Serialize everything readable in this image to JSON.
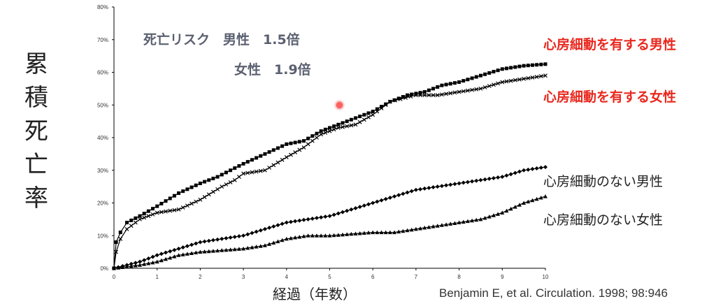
{
  "chart_data": {
    "type": "line",
    "ylabel": "累積死亡率",
    "xlabel": "経過（年数）",
    "x_ticks": [
      "0",
      "1",
      "2",
      "3",
      "4",
      "5",
      "6",
      "7",
      "8",
      "9",
      "10"
    ],
    "y_ticks": [
      "0%",
      "10%",
      "20%",
      "30%",
      "40%",
      "50%",
      "60%",
      "70%",
      "80%"
    ],
    "xlim": [
      0,
      10
    ],
    "ylim": [
      0,
      80
    ],
    "grid": false,
    "series": [
      {
        "name": "心房細動を有する男性",
        "marker": "square",
        "color": "#000000",
        "points": [
          [
            0,
            0
          ],
          [
            0.05,
            8
          ],
          [
            0.15,
            11
          ],
          [
            0.3,
            14
          ],
          [
            0.6,
            16
          ],
          [
            1,
            19
          ],
          [
            1.5,
            23
          ],
          [
            2,
            26
          ],
          [
            2.4,
            28
          ],
          [
            2.7,
            30
          ],
          [
            3,
            32
          ],
          [
            3.5,
            35
          ],
          [
            4,
            38
          ],
          [
            4.4,
            39
          ],
          [
            4.8,
            42
          ],
          [
            5.2,
            44
          ],
          [
            5.6,
            46
          ],
          [
            6,
            48
          ],
          [
            6.4,
            51
          ],
          [
            6.8,
            53
          ],
          [
            7.2,
            54
          ],
          [
            7.6,
            56
          ],
          [
            8,
            57
          ],
          [
            8.5,
            59
          ],
          [
            9,
            61
          ],
          [
            9.5,
            62
          ],
          [
            10,
            62.5
          ]
        ]
      },
      {
        "name": "心房細動を有する女性",
        "marker": "x",
        "color": "#000000",
        "points": [
          [
            0,
            0
          ],
          [
            0.05,
            5
          ],
          [
            0.15,
            9
          ],
          [
            0.3,
            12
          ],
          [
            0.6,
            15
          ],
          [
            1,
            17
          ],
          [
            1.5,
            18
          ],
          [
            2,
            21
          ],
          [
            2.5,
            25
          ],
          [
            2.8,
            27
          ],
          [
            3,
            29
          ],
          [
            3.5,
            30
          ],
          [
            4,
            34
          ],
          [
            4.4,
            37
          ],
          [
            4.8,
            41
          ],
          [
            5.2,
            43
          ],
          [
            5.6,
            44
          ],
          [
            6,
            47
          ],
          [
            6.4,
            51
          ],
          [
            7,
            53
          ],
          [
            7.5,
            53
          ],
          [
            8,
            54
          ],
          [
            8.5,
            55
          ],
          [
            9,
            57
          ],
          [
            9.5,
            58
          ],
          [
            10,
            59
          ]
        ]
      },
      {
        "name": "心房細動のない男性",
        "marker": "diamond",
        "color": "#000000",
        "points": [
          [
            0,
            0
          ],
          [
            0.3,
            1
          ],
          [
            0.6,
            2
          ],
          [
            1,
            4
          ],
          [
            1.5,
            6
          ],
          [
            2,
            8
          ],
          [
            2.5,
            9
          ],
          [
            3,
            10
          ],
          [
            3.5,
            12
          ],
          [
            4,
            14
          ],
          [
            4.5,
            15
          ],
          [
            5,
            16
          ],
          [
            5.5,
            18
          ],
          [
            6,
            20
          ],
          [
            6.5,
            22
          ],
          [
            7,
            24
          ],
          [
            7.5,
            25
          ],
          [
            8,
            26
          ],
          [
            8.5,
            27
          ],
          [
            9,
            28
          ],
          [
            9.5,
            30
          ],
          [
            10,
            31
          ]
        ]
      },
      {
        "name": "心房細動のない女性",
        "marker": "triangle",
        "color": "#000000",
        "points": [
          [
            0,
            0
          ],
          [
            0.3,
            0.5
          ],
          [
            0.6,
            1
          ],
          [
            1,
            2
          ],
          [
            1.5,
            4
          ],
          [
            2,
            5
          ],
          [
            2.5,
            5.5
          ],
          [
            3,
            6
          ],
          [
            3.5,
            7
          ],
          [
            4,
            9
          ],
          [
            4.5,
            10
          ],
          [
            5,
            10
          ],
          [
            5.5,
            10.5
          ],
          [
            6,
            11
          ],
          [
            6.5,
            11
          ],
          [
            7,
            12
          ],
          [
            7.5,
            13
          ],
          [
            8,
            14
          ],
          [
            8.5,
            15
          ],
          [
            9,
            17
          ],
          [
            9.5,
            20
          ],
          [
            10,
            22
          ]
        ]
      }
    ]
  },
  "annotations": {
    "risk_line1": "死亡リスク　男性　1.5倍",
    "risk_line2": "女性　1.9倍"
  },
  "legend": {
    "af_male": "心房細動を有する男性",
    "af_female": "心房細動を有する女性",
    "no_af_male": "心房細動のない男性",
    "no_af_female": "心房細動のない女性"
  },
  "colors": {
    "legend_highlight": "#e8281e",
    "risk_text": "#5a6070"
  },
  "citation": "Benjamin E, et al. Circulation. 1998; 98:946"
}
